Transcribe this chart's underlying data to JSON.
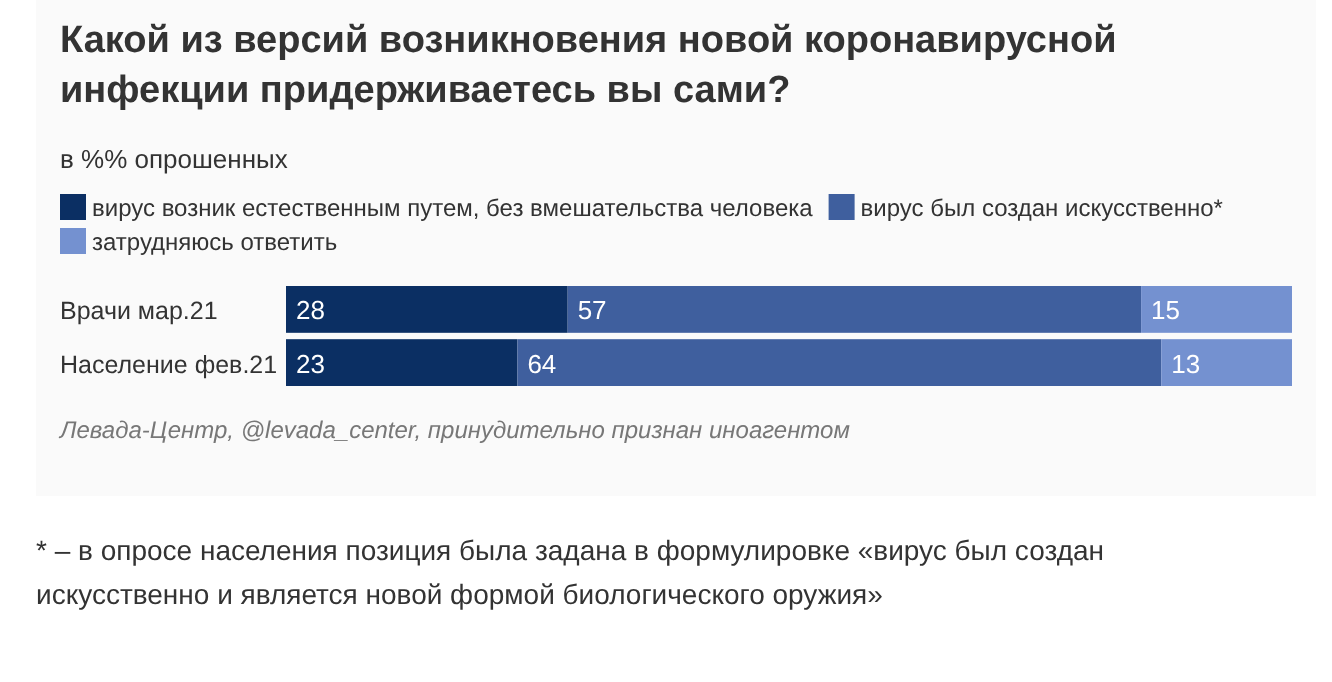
{
  "chart_data": {
    "type": "bar",
    "orientation": "horizontal",
    "stacked": true,
    "title": "Какой из версий возникновения новой коронавирусной инфекции придерживаетесь вы сами?",
    "subtitle": "в %% опрошенных",
    "categories": [
      "Врачи мар.21",
      "Население фев.21"
    ],
    "series": [
      {
        "name": "вирус возник естественным путем, без вмешательства человека",
        "color": "#0b2f63",
        "values": [
          28,
          23
        ]
      },
      {
        "name": "вирус был создан искусственно*",
        "color": "#3f5f9e",
        "values": [
          57,
          64
        ]
      },
      {
        "name": "затрудняюсь ответить",
        "color": "#7491d0",
        "values": [
          15,
          13
        ]
      }
    ],
    "xlim": [
      0,
      100
    ],
    "tick_labels": "y",
    "data_labels": true,
    "legend": "top left",
    "annotations": [
      "Левада-Центр, @levada_center, принудительно признан иноагентом",
      "* – в опросе населения позиция была задана в формулировке «вирус был создан искусственно и является новой формой биологического оружия»"
    ]
  }
}
